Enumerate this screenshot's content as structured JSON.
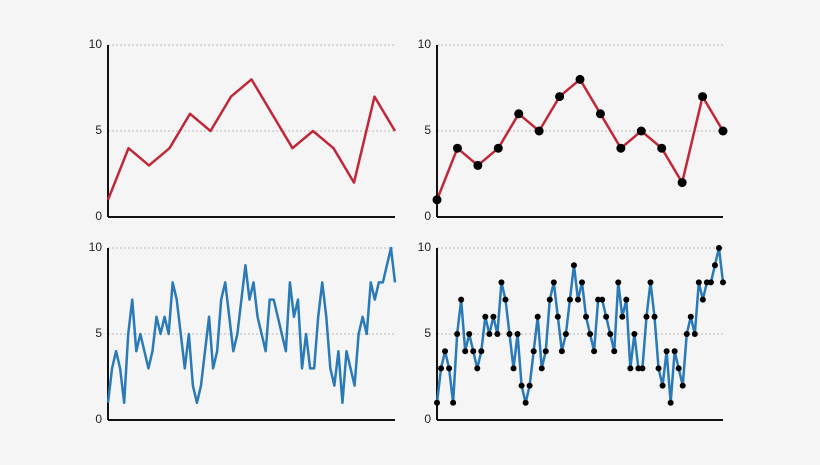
{
  "chart_data": [
    {
      "type": "line",
      "markers": false,
      "grid": true,
      "ylim": [
        0,
        10
      ],
      "yticks": [
        0,
        5,
        10
      ],
      "series": [
        {
          "color": "#c0283a",
          "values": [
            1,
            4,
            3,
            4,
            6,
            5,
            7,
            8,
            6,
            4,
            5,
            4,
            2,
            7,
            5
          ]
        }
      ]
    },
    {
      "type": "line",
      "markers": true,
      "grid": true,
      "ylim": [
        0,
        10
      ],
      "yticks": [
        0,
        5,
        10
      ],
      "series": [
        {
          "color": "#c0283a",
          "values": [
            1,
            4,
            3,
            4,
            6,
            5,
            7,
            8,
            6,
            4,
            5,
            4,
            2,
            7,
            5
          ]
        }
      ]
    },
    {
      "type": "line",
      "markers": false,
      "grid": true,
      "ylim": [
        0,
        10
      ],
      "yticks": [
        0,
        5,
        10
      ],
      "series": [
        {
          "color": "#2a7ab8",
          "values": [
            1,
            3,
            4,
            3,
            1,
            5,
            7,
            4,
            5,
            4,
            3,
            4,
            6,
            5,
            6,
            5,
            8,
            7,
            5,
            3,
            5,
            2,
            1,
            2,
            4,
            6,
            3,
            4,
            7,
            8,
            6,
            4,
            5,
            7,
            9,
            7,
            8,
            6,
            5,
            4,
            7,
            7,
            6,
            5,
            4,
            8,
            6,
            7,
            3,
            5,
            3,
            3,
            6,
            8,
            6,
            3,
            2,
            4,
            1,
            4,
            3,
            2,
            5,
            6,
            5,
            8,
            7,
            8,
            8,
            9,
            10,
            8
          ]
        }
      ]
    },
    {
      "type": "line",
      "markers": true,
      "grid": true,
      "ylim": [
        0,
        10
      ],
      "yticks": [
        0,
        5,
        10
      ],
      "series": [
        {
          "color": "#2a7ab8",
          "values": [
            1,
            3,
            4,
            3,
            1,
            5,
            7,
            4,
            5,
            4,
            3,
            4,
            6,
            5,
            6,
            5,
            8,
            7,
            5,
            3,
            5,
            2,
            1,
            2,
            4,
            6,
            3,
            4,
            7,
            8,
            6,
            4,
            5,
            7,
            9,
            7,
            8,
            6,
            5,
            4,
            7,
            7,
            6,
            5,
            4,
            8,
            6,
            7,
            3,
            5,
            3,
            3,
            6,
            8,
            6,
            3,
            2,
            4,
            1,
            4,
            3,
            2,
            5,
            6,
            5,
            8,
            7,
            8,
            8,
            9,
            10,
            8
          ]
        }
      ]
    }
  ]
}
